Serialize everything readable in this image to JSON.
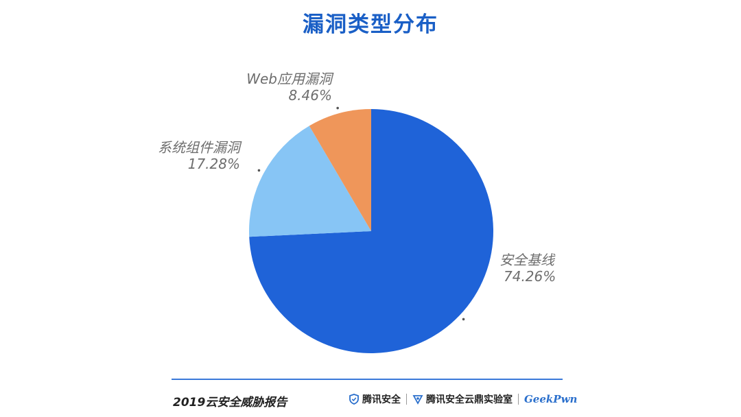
{
  "chart_data": {
    "type": "pie",
    "title": "漏洞类型分布",
    "slices": [
      {
        "label": "安全基线",
        "value": 74.26,
        "value_text": "74.26%",
        "color": "#1f63d8"
      },
      {
        "label": "系统组件漏洞",
        "value": 17.28,
        "value_text": "17.28%",
        "color": "#87c5f5"
      },
      {
        "label": "Web应用漏洞",
        "value": 8.46,
        "value_text": "8.46%",
        "color": "#ef965a"
      }
    ]
  },
  "footer": {
    "report_title": "2019云安全威胁报告",
    "logo1_text": "腾讯安全",
    "logo2_text": "腾讯安全云鼎实验室",
    "logo3_text": "GeekPwn",
    "accent_color": "#3a79d9"
  }
}
